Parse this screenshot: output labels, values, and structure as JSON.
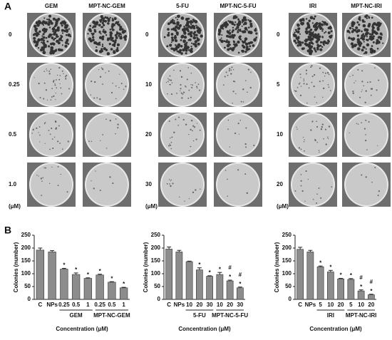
{
  "panel_a": {
    "label": "A",
    "unit": "(μM)",
    "groups": [
      {
        "columns": [
          "GEM",
          "MPT-NC-GEM"
        ],
        "rows": [
          "0",
          "0.25",
          "0.5",
          "1.0"
        ]
      },
      {
        "columns": [
          "5-FU",
          "MPT-NC-5-FU"
        ],
        "rows": [
          "0",
          "10",
          "20",
          "30"
        ]
      },
      {
        "columns": [
          "IRI",
          "MPT-NC-IRI"
        ],
        "rows": [
          "0",
          "5",
          "10",
          "20"
        ]
      }
    ]
  },
  "panel_b": {
    "label": "B"
  },
  "chart_data": [
    {
      "type": "bar",
      "ylabel": "Colonies (number)",
      "xlabel": "Concentration (μM)",
      "categories": [
        "C",
        "NPs",
        "0.25",
        "0.5",
        "1",
        "0.25",
        "0.5",
        "1"
      ],
      "groups": [
        null,
        null,
        "GEM",
        "GEM",
        "GEM",
        "MPT-NC-GEM",
        "MPT-NC-GEM",
        "MPT-NC-GEM"
      ],
      "values": [
        192,
        185,
        118,
        97,
        82,
        95,
        67,
        45
      ],
      "errors": [
        8,
        5,
        3,
        6,
        2,
        3,
        2,
        2
      ],
      "stars": [
        null,
        null,
        "*",
        "*",
        "*",
        "*",
        "*",
        "*"
      ],
      "hashes": [
        null,
        null,
        null,
        null,
        null,
        null,
        null,
        null
      ],
      "color": "#8c8c8c",
      "ylim": [
        0,
        250
      ],
      "yticks": [
        0,
        50,
        100,
        150,
        200,
        250
      ]
    },
    {
      "type": "bar",
      "ylabel": "Colonies (number)",
      "xlabel": "Concentration (μM)",
      "categories": [
        "C",
        "NPs",
        "10",
        "20",
        "30",
        "10",
        "20",
        "30"
      ],
      "groups": [
        null,
        null,
        "5-FU",
        "5-FU",
        "5-FU",
        "MPT-NC-5-FU",
        "MPT-NC-5-FU",
        "MPT-NC-5-FU"
      ],
      "values": [
        196,
        185,
        147,
        115,
        90,
        97,
        72,
        45
      ],
      "errors": [
        8,
        6,
        2,
        8,
        2,
        8,
        3,
        3
      ],
      "stars": [
        null,
        null,
        null,
        "*",
        "*",
        "*",
        "*",
        "*"
      ],
      "hashes": [
        null,
        null,
        null,
        null,
        null,
        null,
        "#",
        "#"
      ],
      "color": "#8c8c8c",
      "ylim": [
        0,
        250
      ],
      "yticks": [
        0,
        50,
        100,
        150,
        200,
        250
      ]
    },
    {
      "type": "bar",
      "ylabel": "Colonies (number)",
      "xlabel": "Concentration (μM)",
      "categories": [
        "C",
        "NPs",
        "5",
        "10",
        "20",
        "5",
        "10",
        "20"
      ],
      "groups": [
        null,
        null,
        "IRI",
        "IRI",
        "IRI",
        "MPT-NC-IRI",
        "MPT-NC-IRI",
        "MPT-NC-IRI"
      ],
      "values": [
        195,
        185,
        127,
        107,
        80,
        78,
        33,
        18
      ],
      "errors": [
        8,
        6,
        3,
        6,
        2,
        3,
        4,
        2
      ],
      "stars": [
        null,
        null,
        "*",
        "*",
        "*",
        "*",
        "*",
        "*"
      ],
      "hashes": [
        null,
        null,
        null,
        null,
        null,
        null,
        "#",
        "#"
      ],
      "color": "#8c8c8c",
      "ylim": [
        0,
        250
      ],
      "yticks": [
        0,
        50,
        100,
        150,
        200,
        250
      ]
    }
  ]
}
